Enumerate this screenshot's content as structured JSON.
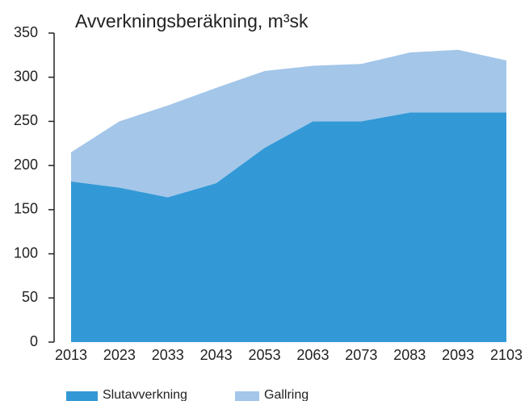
{
  "chart_data": {
    "type": "stacked_area",
    "title": "Avverkningsberäkning, m³sk",
    "categories": [
      "2013",
      "2023",
      "2033",
      "2043",
      "2053",
      "2063",
      "2073",
      "2083",
      "2093",
      "2103"
    ],
    "series": [
      {
        "name": "Slutavverkning",
        "color": "#3399d6",
        "values": [
          182,
          175,
          164,
          180,
          220,
          250,
          250,
          260,
          260,
          260
        ]
      },
      {
        "name": "Gallring",
        "color": "#a3c6e9",
        "values": [
          33,
          75,
          104,
          108,
          87,
          63,
          65,
          68,
          71,
          59
        ]
      }
    ],
    "ylim": [
      0,
      350
    ],
    "yticks": [
      0,
      50,
      100,
      150,
      200,
      250,
      300,
      350
    ]
  }
}
